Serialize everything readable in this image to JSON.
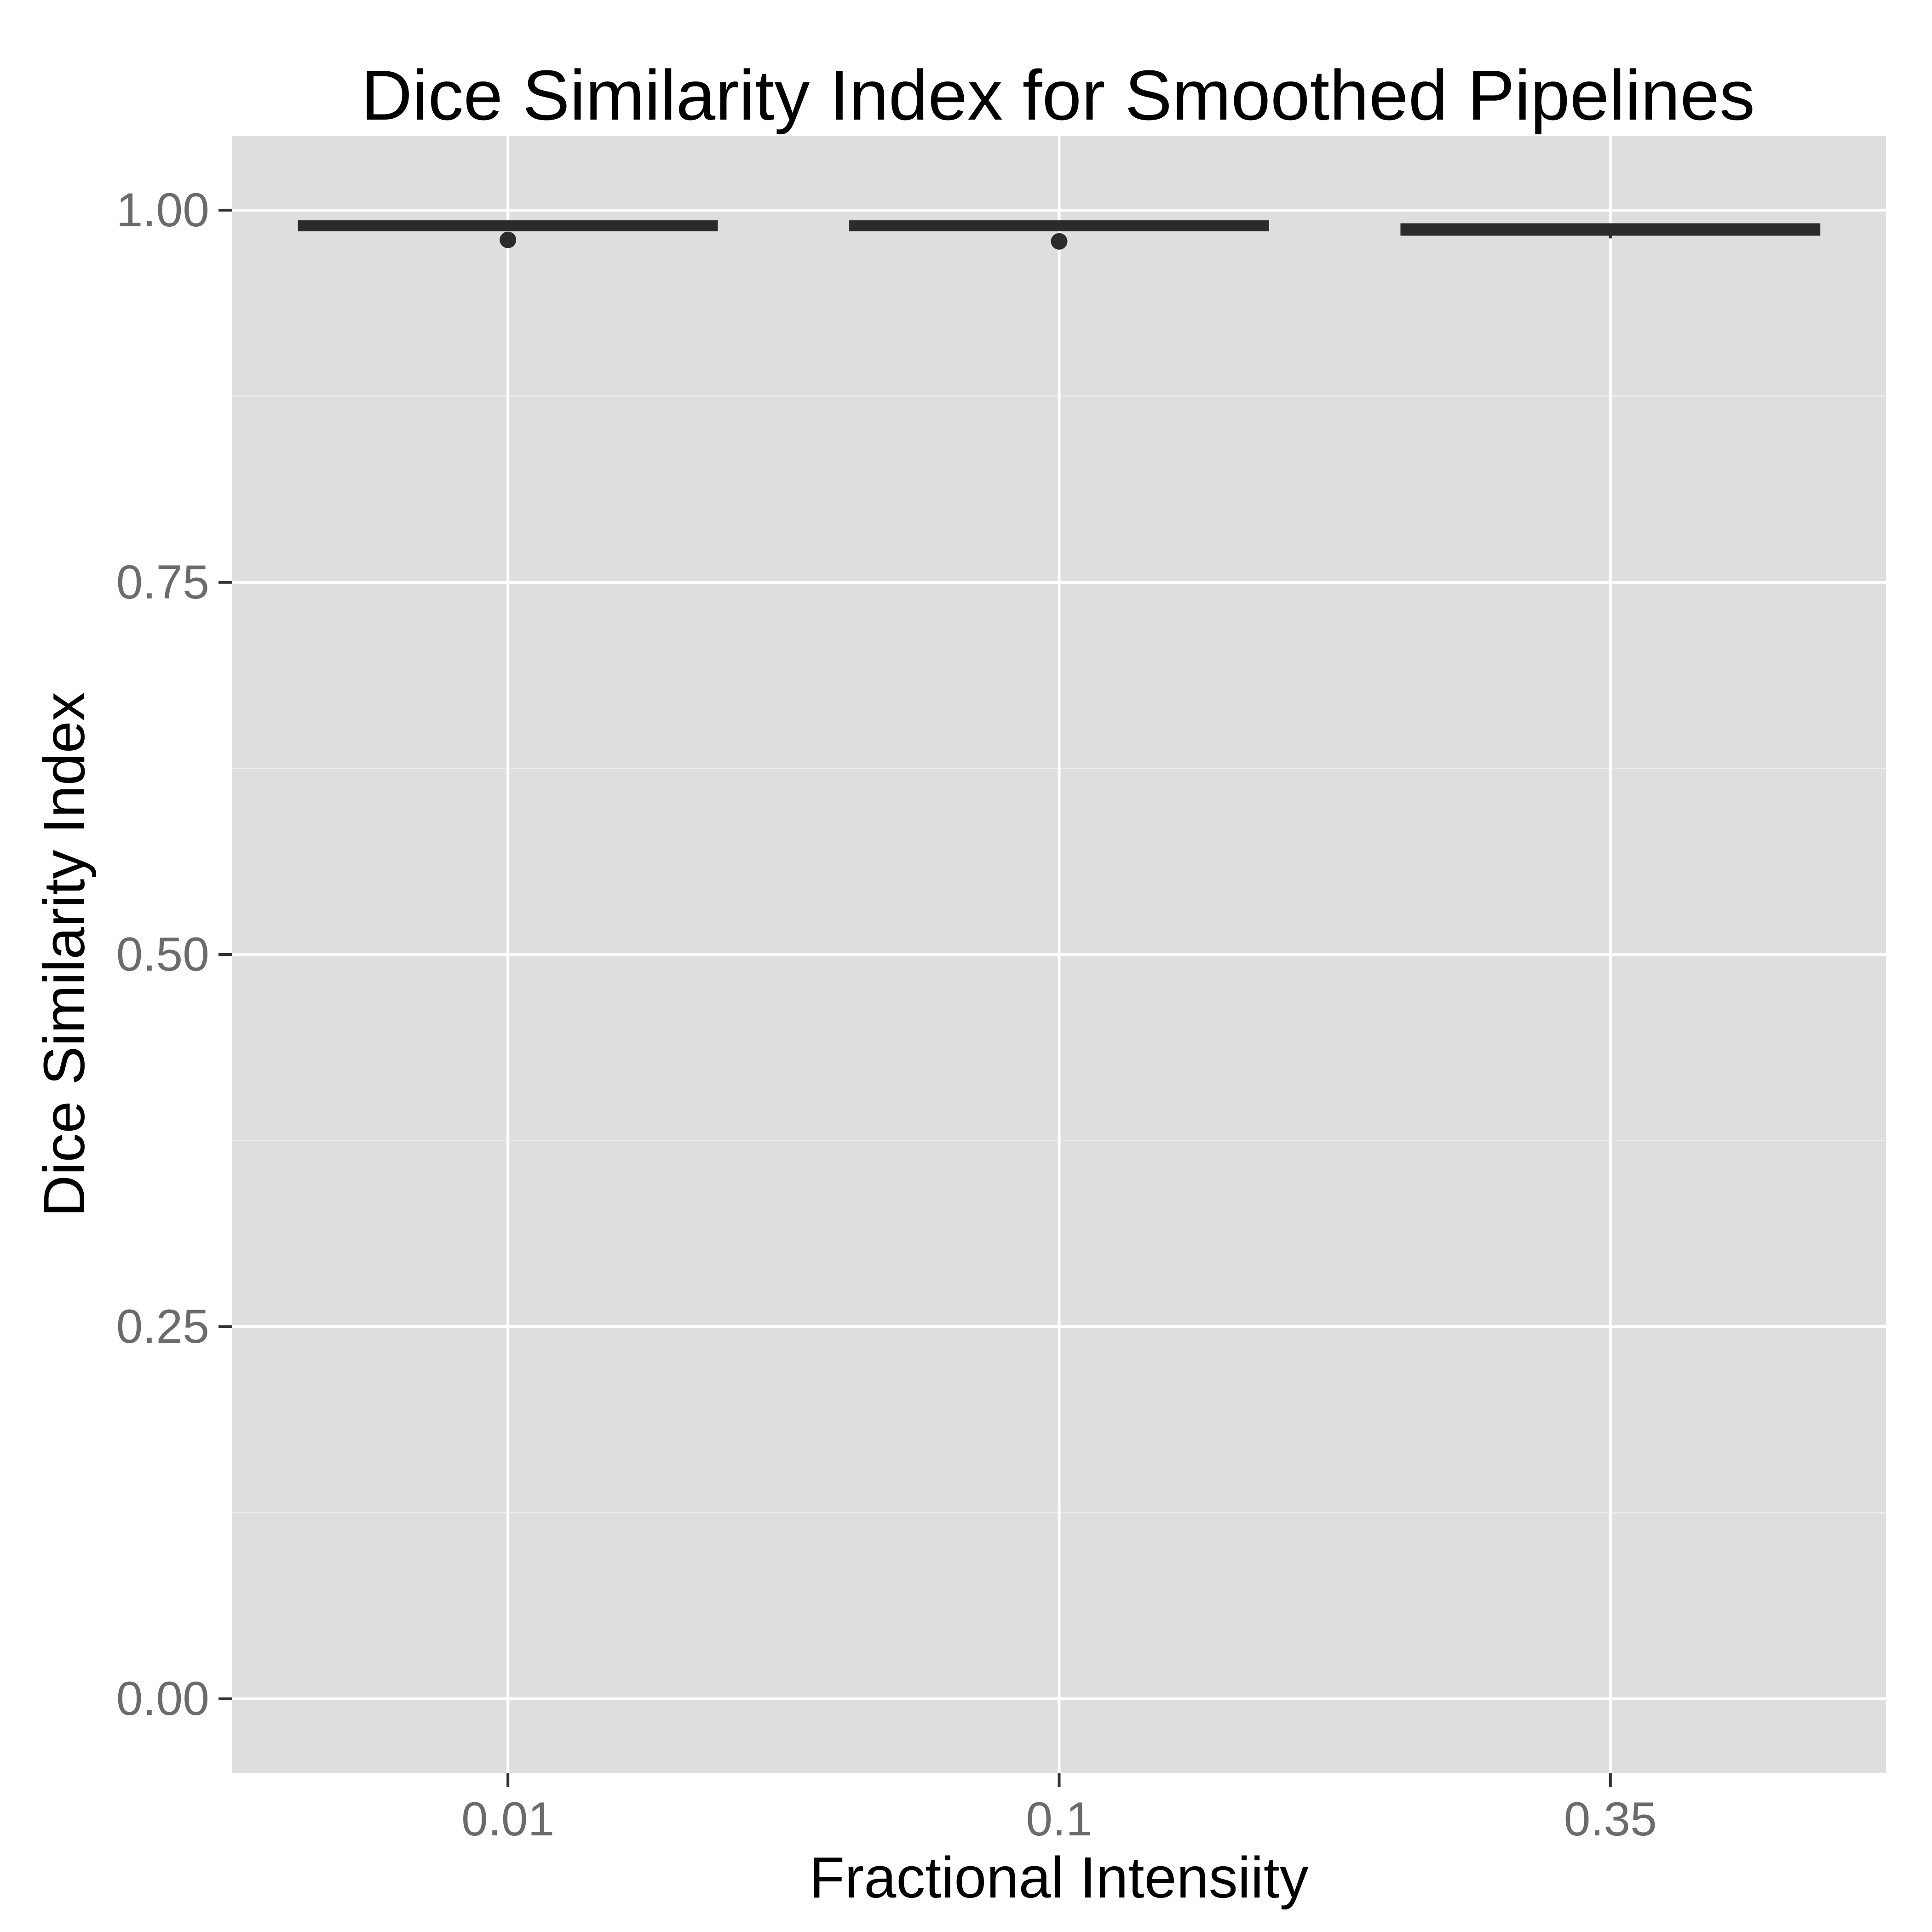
{
  "chart_data": {
    "type": "box",
    "title": "Dice Similarity Index for Smoothed Pipelines",
    "xlabel": "Fractional Intensiity",
    "ylabel": "Dice Similarity Index",
    "categories": [
      "0.01",
      "0.1",
      "0.35"
    ],
    "ylim": [
      -0.05,
      1.05
    ],
    "yticks": [
      0.0,
      0.25,
      0.5,
      0.75,
      1.0
    ],
    "ytick_labels": [
      "0.00",
      "0.25",
      "0.50",
      "0.75",
      "1.00"
    ],
    "grid": true,
    "legend": "none",
    "boxes": [
      {
        "category": "0.01",
        "whisker_low": 0.988,
        "q1": 0.988,
        "median": 0.989,
        "q3": 0.991,
        "whisker_high": 0.991,
        "outliers": [
          0.98
        ]
      },
      {
        "category": "0.1",
        "whisker_low": 0.988,
        "q1": 0.988,
        "median": 0.989,
        "q3": 0.991,
        "whisker_high": 0.991,
        "outliers": [
          0.979
        ]
      },
      {
        "category": "0.35",
        "whisker_low": 0.981,
        "q1": 0.985,
        "median": 0.987,
        "q3": 0.989,
        "whisker_high": 0.989,
        "outliers": []
      }
    ],
    "colors": {
      "panel_background": "#dedede",
      "grid_major": "#ffffff",
      "grid_minor": "#ececec",
      "box_line": "#2b2b2b",
      "tick_label": "#6b6b6b"
    }
  }
}
